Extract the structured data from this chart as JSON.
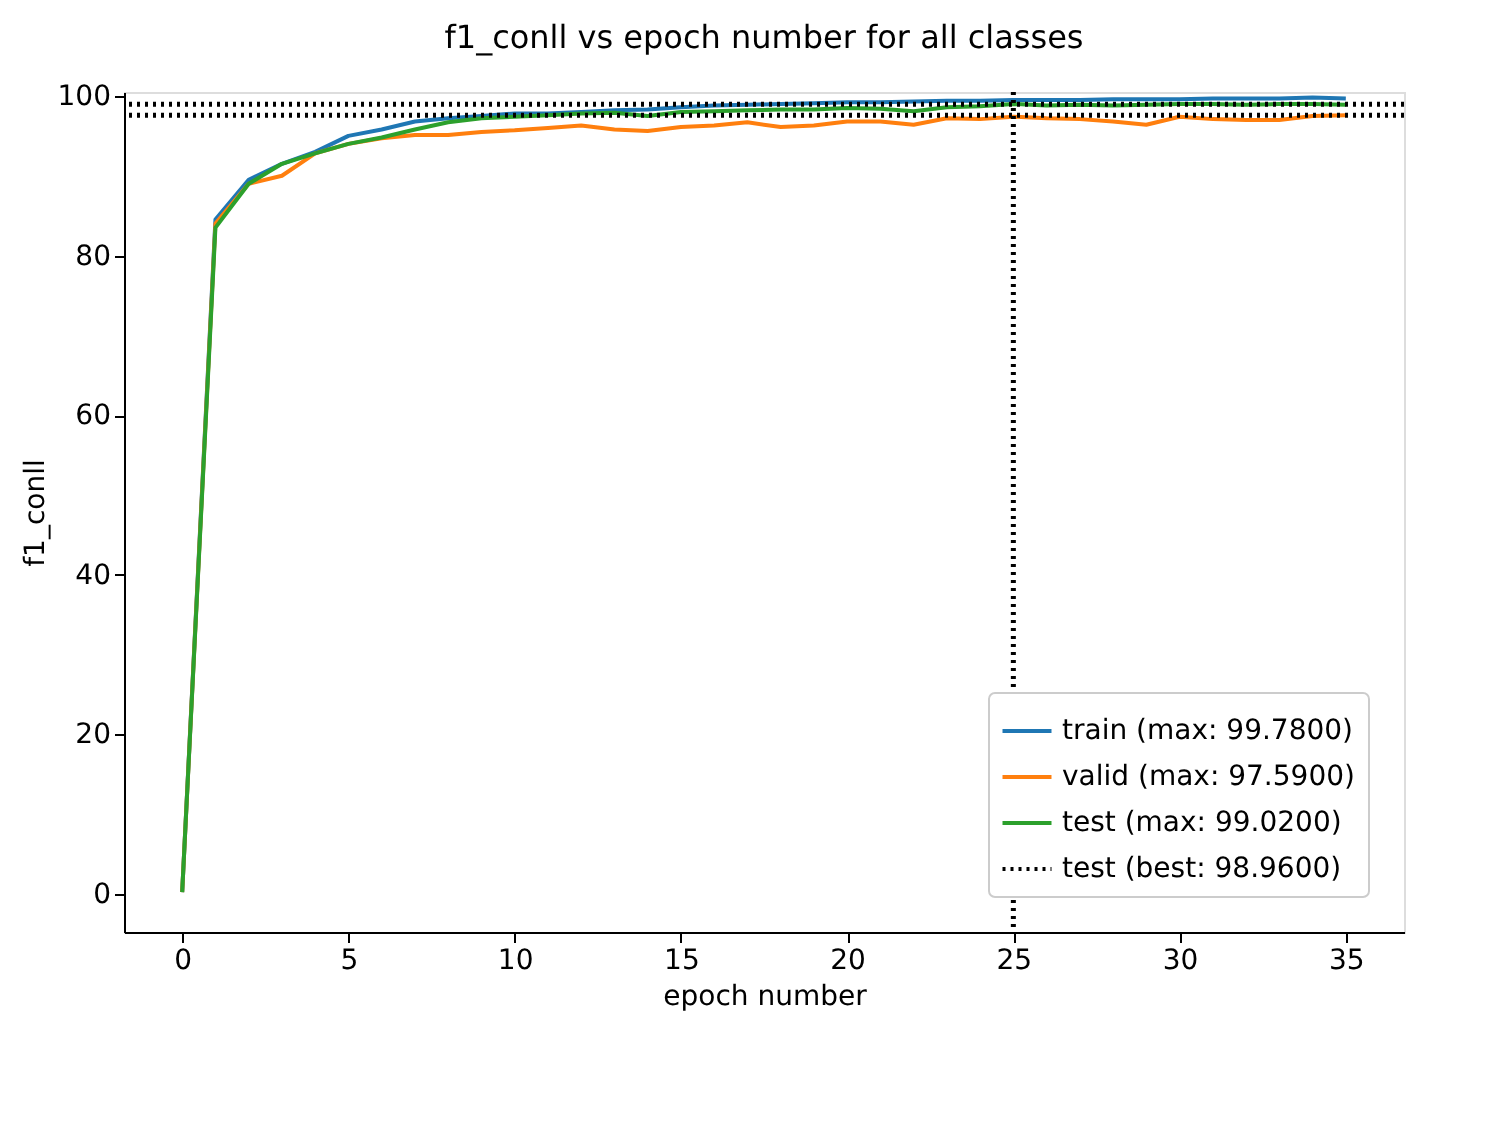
{
  "chart_data": {
    "type": "line",
    "title": "f1_conll vs epoch number for all classes",
    "xlabel": "epoch number",
    "ylabel": "f1_conll",
    "x": [
      0,
      1,
      2,
      3,
      4,
      5,
      6,
      7,
      8,
      9,
      10,
      11,
      12,
      13,
      14,
      15,
      16,
      17,
      18,
      19,
      20,
      21,
      22,
      23,
      24,
      25,
      26,
      27,
      28,
      29,
      30,
      31,
      32,
      33,
      34,
      35
    ],
    "series": [
      {
        "name": "train (max: 99.7800)",
        "color": "#1f77b4",
        "values": [
          0.2,
          84.5,
          89.5,
          91.5,
          93,
          95,
          95.8,
          96.8,
          97.2,
          97.5,
          97.8,
          97.8,
          98,
          98.2,
          98.3,
          98.6,
          98.8,
          98.9,
          99,
          99.1,
          99.2,
          99.2,
          99.3,
          99.4,
          99.4,
          99.5,
          99.5,
          99.5,
          99.6,
          99.6,
          99.6,
          99.7,
          99.7,
          99.7,
          99.8,
          99.7
        ]
      },
      {
        "name": "valid (max: 97.5900)",
        "color": "#ff7f0e",
        "values": [
          0.2,
          84,
          89,
          90,
          92.8,
          94,
          94.7,
          95.1,
          95.1,
          95.5,
          95.7,
          96,
          96.3,
          95.8,
          95.6,
          96.1,
          96.3,
          96.7,
          96.1,
          96.3,
          96.8,
          96.8,
          96.4,
          97.2,
          97.1,
          97.4,
          97.2,
          97.1,
          96.8,
          96.4,
          97.4,
          97.1,
          97,
          97,
          97.5,
          97.6
        ]
      },
      {
        "name": "test (max: 99.0200)",
        "color": "#2ca02c",
        "values": [
          0.2,
          83.5,
          89,
          91.5,
          92.8,
          94,
          94.8,
          95.8,
          96.7,
          97.2,
          97.4,
          97.6,
          97.8,
          97.9,
          97.5,
          98,
          98.1,
          98.2,
          98.3,
          98.3,
          98.5,
          98.4,
          98.1,
          98.6,
          98.7,
          99,
          98.8,
          98.9,
          98.8,
          98.9,
          99,
          99,
          98.9,
          99,
          99,
          98.9
        ]
      }
    ],
    "ref_lines": [
      {
        "axis": "y",
        "value": 98.96,
        "label": "test (best: 98.9600)",
        "color": "#000000",
        "line_style": "dotted"
      },
      {
        "axis": "y",
        "value": 97.6,
        "color": "#000000",
        "line_style": "dotted"
      },
      {
        "axis": "x",
        "value": 25,
        "color": "#000000",
        "line_style": "dotted"
      }
    ],
    "xlim": [
      -1.75,
      36.75
    ],
    "xticks": [
      0,
      5,
      10,
      15,
      20,
      25,
      30,
      35
    ],
    "ylim": [
      -4.8,
      100.5
    ],
    "yticks": [
      0,
      20,
      40,
      60,
      80,
      100
    ],
    "grid": false,
    "legend": "bottom right",
    "marker": "none",
    "line_style": "solid"
  }
}
